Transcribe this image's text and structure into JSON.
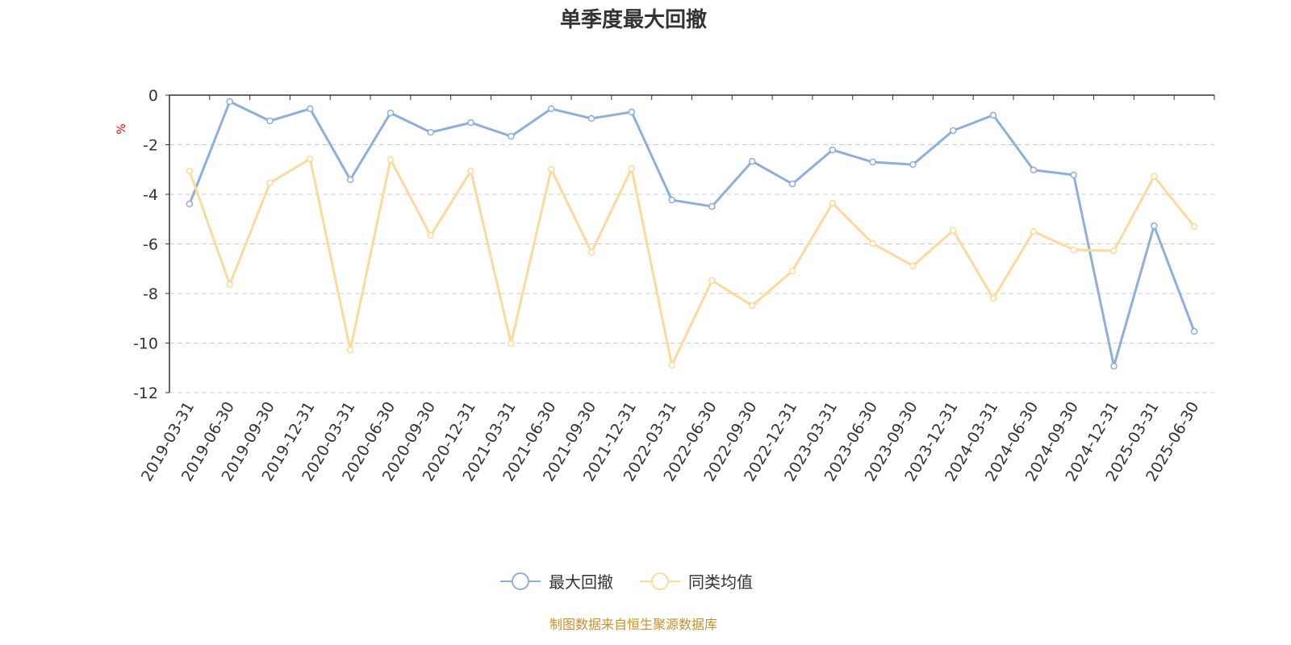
{
  "chart_data": {
    "type": "line",
    "title": "单季度最大回撤",
    "ylabel": "%",
    "xlabel": "",
    "ylim": [
      -12,
      0
    ],
    "yticks": [
      0,
      -2,
      -4,
      -6,
      -8,
      -10,
      -12
    ],
    "grid": true,
    "legend_position": "bottom",
    "categories": [
      "2019-03-31",
      "2019-06-30",
      "2019-09-30",
      "2019-12-31",
      "2020-03-31",
      "2020-06-30",
      "2020-09-30",
      "2020-12-31",
      "2021-03-31",
      "2021-06-30",
      "2021-09-30",
      "2021-12-31",
      "2022-03-31",
      "2022-06-30",
      "2022-09-30",
      "2022-12-31",
      "2023-03-31",
      "2023-06-30",
      "2023-09-30",
      "2023-12-31",
      "2024-03-31",
      "2024-06-30",
      "2024-09-30",
      "2024-12-31",
      "2025-03-31",
      "2025-06-30"
    ],
    "series": [
      {
        "name": "最大回撤",
        "color": "#8eaedb",
        "values": [
          -4.39,
          -0.26,
          -1.04,
          -0.55,
          -3.41,
          -0.72,
          -1.5,
          -1.11,
          -1.66,
          -0.55,
          -0.94,
          -0.68,
          -4.23,
          -4.49,
          -2.67,
          -3.58,
          -2.21,
          -2.7,
          -2.8,
          -1.43,
          -0.81,
          -3.02,
          -3.22,
          -10.93,
          -5.27,
          -9.53
        ]
      },
      {
        "name": "同类均值",
        "color": "#fdd99a",
        "values": [
          -3.06,
          -7.64,
          -3.54,
          -2.57,
          -10.28,
          -2.6,
          -5.66,
          -3.06,
          -10.02,
          -2.99,
          -6.34,
          -2.96,
          -10.89,
          -7.48,
          -8.49,
          -7.09,
          -4.36,
          -5.98,
          -6.89,
          -5.46,
          -8.2,
          -5.5,
          -6.24,
          -6.28,
          -3.28,
          -5.3
        ]
      }
    ]
  },
  "footer": "制图数据来自恒生聚源数据库"
}
